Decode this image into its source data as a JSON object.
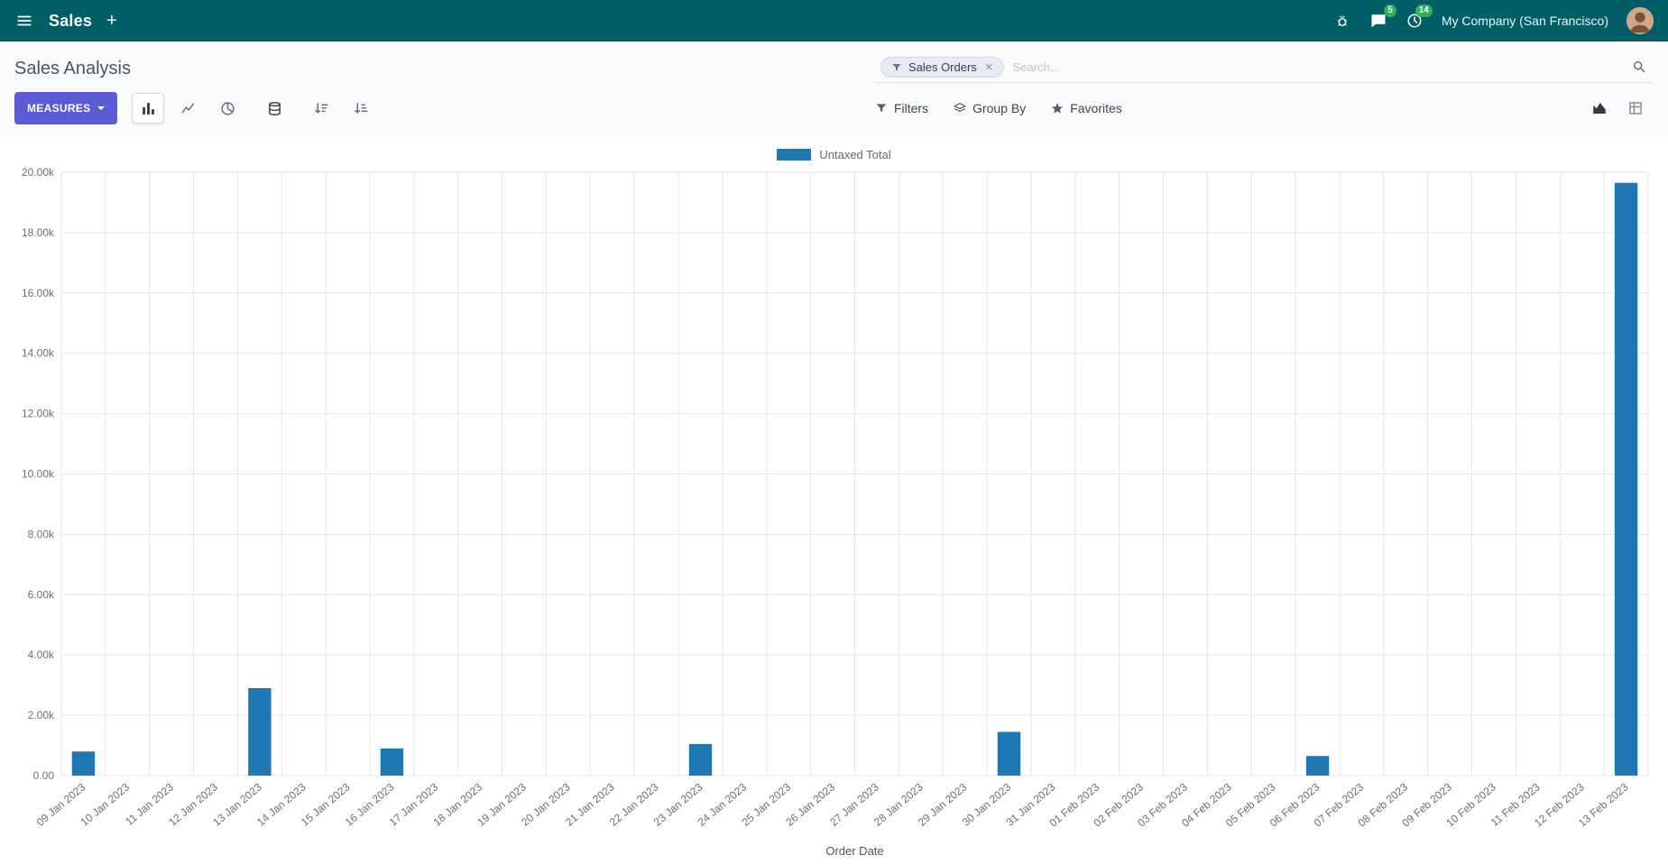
{
  "navbar": {
    "app_name": "Sales",
    "company_name": "My Company (San Francisco)",
    "messages_badge": "5",
    "activities_badge": "14"
  },
  "control_panel": {
    "title": "Sales Analysis",
    "measures_button": "MEASURES",
    "search": {
      "facet_label": "Sales Orders",
      "facet_remove": "×",
      "placeholder": "Search..."
    },
    "filters_label": "Filters",
    "group_by_label": "Group By",
    "favorites_label": "Favorites"
  },
  "chart_data": {
    "type": "bar",
    "title": "",
    "legend": [
      "Untaxed Total"
    ],
    "series_color": "#1f77b4",
    "xlabel": "Order Date",
    "ylabel": "",
    "ylim": [
      0,
      20000
    ],
    "grid": true,
    "legend_position": "top-center",
    "yticks": [
      "0.00",
      "2.00k",
      "4.00k",
      "6.00k",
      "8.00k",
      "10.00k",
      "12.00k",
      "14.00k",
      "16.00k",
      "18.00k",
      "20.00k"
    ],
    "categories": [
      "09 Jan 2023",
      "10 Jan 2023",
      "11 Jan 2023",
      "12 Jan 2023",
      "13 Jan 2023",
      "14 Jan 2023",
      "15 Jan 2023",
      "16 Jan 2023",
      "17 Jan 2023",
      "18 Jan 2023",
      "19 Jan 2023",
      "20 Jan 2023",
      "21 Jan 2023",
      "22 Jan 2023",
      "23 Jan 2023",
      "24 Jan 2023",
      "25 Jan 2023",
      "26 Jan 2023",
      "27 Jan 2023",
      "28 Jan 2023",
      "29 Jan 2023",
      "30 Jan 2023",
      "31 Jan 2023",
      "01 Feb 2023",
      "02 Feb 2023",
      "03 Feb 2023",
      "04 Feb 2023",
      "05 Feb 2023",
      "06 Feb 2023",
      "07 Feb 2023",
      "08 Feb 2023",
      "09 Feb 2023",
      "10 Feb 2023",
      "11 Feb 2023",
      "12 Feb 2023",
      "13 Feb 2023"
    ],
    "values": [
      800,
      0,
      0,
      0,
      2900,
      0,
      0,
      900,
      0,
      0,
      0,
      0,
      0,
      0,
      1050,
      0,
      0,
      0,
      0,
      0,
      0,
      1450,
      0,
      0,
      0,
      0,
      0,
      0,
      650,
      0,
      0,
      0,
      0,
      0,
      0,
      19650
    ]
  }
}
